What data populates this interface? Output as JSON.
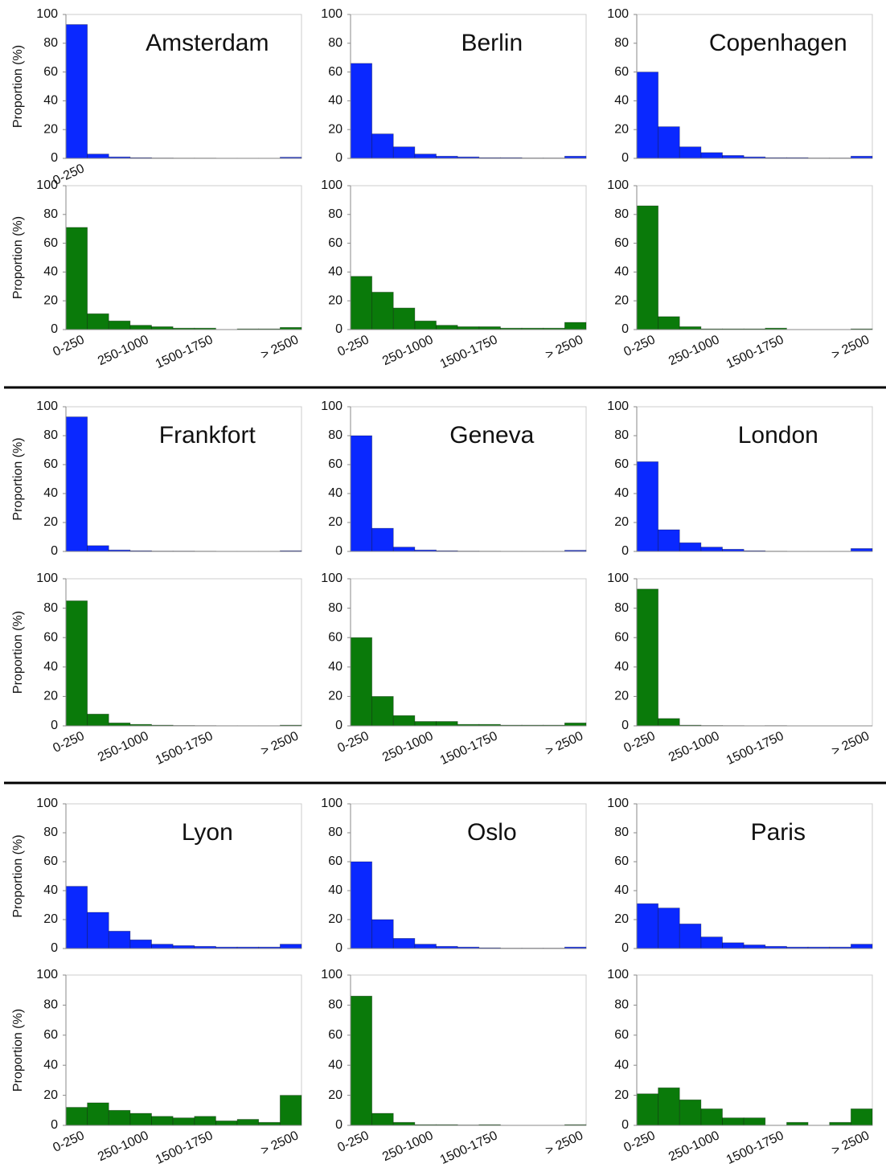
{
  "chart_data": [
    {
      "type": "bar",
      "title": "Amsterdam",
      "ylabel": "Proportion (%)",
      "categories": [
        "0-250",
        null,
        null,
        null,
        null,
        null,
        null,
        null,
        null,
        null,
        null
      ],
      "values": [
        93,
        3,
        1,
        0.5,
        0.3,
        0.2,
        0.2,
        0.1,
        0.1,
        0.1,
        0.8
      ],
      "color": "#0a28ff",
      "ylim": [
        0,
        100
      ],
      "yticks": [
        0,
        20,
        40,
        60,
        80,
        100
      ]
    },
    {
      "type": "bar",
      "ylabel": "Proportion (%)",
      "categories": [
        "0-250",
        null,
        null,
        "250-1000",
        null,
        null,
        "1500-1750",
        null,
        null,
        null,
        "> 2500"
      ],
      "values": [
        71,
        11,
        6,
        3,
        2,
        1,
        1,
        0,
        0.5,
        0.5,
        1.5
      ],
      "color": "#0a7a0a",
      "ylim": [
        0,
        100
      ],
      "yticks": [
        0,
        20,
        40,
        60,
        80,
        100
      ]
    },
    {
      "type": "bar",
      "title": "Berlin",
      "values": [
        66,
        17,
        8,
        3,
        1.5,
        1,
        0.5,
        0.5,
        0.3,
        0.3,
        1.5
      ],
      "color": "#0a28ff",
      "ylim": [
        0,
        100
      ],
      "yticks": [
        0,
        20,
        40,
        60,
        80,
        100
      ]
    },
    {
      "type": "bar",
      "categories": [
        "0-250",
        null,
        null,
        "250-1000",
        null,
        null,
        "1500-1750",
        null,
        null,
        null,
        "> 2500"
      ],
      "values": [
        37,
        26,
        15,
        6,
        3,
        2,
        2,
        1,
        1,
        1,
        5
      ],
      "color": "#0a7a0a",
      "ylim": [
        0,
        100
      ],
      "yticks": [
        0,
        20,
        40,
        60,
        80,
        100
      ]
    },
    {
      "type": "bar",
      "title": "Copenhagen",
      "values": [
        60,
        22,
        8,
        4,
        2,
        1,
        0.5,
        0.5,
        0.3,
        0.3,
        1.5
      ],
      "color": "#0a28ff",
      "ylim": [
        0,
        100
      ],
      "yticks": [
        0,
        20,
        40,
        60,
        80,
        100
      ]
    },
    {
      "type": "bar",
      "categories": [
        "0-250",
        null,
        null,
        "250-1000",
        null,
        null,
        "1500-1750",
        null,
        null,
        null,
        "> 2500"
      ],
      "values": [
        86,
        9,
        2,
        0.5,
        0.5,
        0.5,
        1,
        0,
        0,
        0,
        0.5
      ],
      "color": "#0a7a0a",
      "ylim": [
        0,
        100
      ],
      "yticks": [
        0,
        20,
        40,
        60,
        80,
        100
      ]
    },
    {
      "type": "bar",
      "title": "Frankfort",
      "ylabel": "Proportion (%)",
      "values": [
        93,
        4,
        1,
        0.5,
        0.3,
        0.3,
        0.2,
        0.1,
        0.1,
        0.1,
        0.5
      ],
      "color": "#0a28ff",
      "ylim": [
        0,
        100
      ],
      "yticks": [
        0,
        20,
        40,
        60,
        80,
        100
      ]
    },
    {
      "type": "bar",
      "ylabel": "Proportion (%)",
      "categories": [
        "0-250",
        null,
        null,
        "250-1000",
        null,
        null,
        "1500-1750",
        null,
        null,
        null,
        "> 2500"
      ],
      "values": [
        85,
        8,
        2,
        1,
        0.5,
        0.3,
        0.2,
        0.1,
        0.1,
        0.1,
        0.5
      ],
      "color": "#0a7a0a",
      "ylim": [
        0,
        100
      ],
      "yticks": [
        0,
        20,
        40,
        60,
        80,
        100
      ]
    },
    {
      "type": "bar",
      "title": "Geneva",
      "values": [
        80,
        16,
        3,
        1,
        0.5,
        0.3,
        0.2,
        0.1,
        0.1,
        0.1,
        0.8
      ],
      "color": "#0a28ff",
      "ylim": [
        0,
        100
      ],
      "yticks": [
        0,
        20,
        40,
        60,
        80,
        100
      ]
    },
    {
      "type": "bar",
      "categories": [
        "0-250",
        null,
        null,
        "250-1000",
        null,
        null,
        "1500-1750",
        null,
        null,
        null,
        "> 2500"
      ],
      "values": [
        60,
        20,
        7,
        3,
        3,
        1,
        1,
        0.5,
        0.5,
        0.5,
        2
      ],
      "color": "#0a7a0a",
      "ylim": [
        0,
        100
      ],
      "yticks": [
        0,
        20,
        40,
        60,
        80,
        100
      ]
    },
    {
      "type": "bar",
      "title": "London",
      "values": [
        62,
        15,
        6,
        3,
        1.5,
        0.5,
        0.2,
        0.1,
        0.1,
        0.1,
        2
      ],
      "color": "#0a28ff",
      "ylim": [
        0,
        100
      ],
      "yticks": [
        0,
        20,
        40,
        60,
        80,
        100
      ]
    },
    {
      "type": "bar",
      "categories": [
        "0-250",
        null,
        null,
        "250-1000",
        null,
        null,
        "1500-1750",
        null,
        null,
        null,
        "> 2500"
      ],
      "values": [
        93,
        5,
        0.5,
        0.3,
        0.2,
        0.1,
        0.2,
        0,
        0,
        0,
        0
      ],
      "color": "#0a7a0a",
      "ylim": [
        0,
        100
      ],
      "yticks": [
        0,
        20,
        40,
        60,
        80,
        100
      ]
    },
    {
      "type": "bar",
      "title": "Lyon",
      "ylabel": "Proportion (%)",
      "values": [
        43,
        25,
        12,
        6,
        3,
        2,
        1.5,
        1,
        1,
        1,
        3
      ],
      "color": "#0a28ff",
      "ylim": [
        0,
        100
      ],
      "yticks": [
        0,
        20,
        40,
        60,
        80,
        100
      ]
    },
    {
      "type": "bar",
      "ylabel": "Proportion (%)",
      "categories": [
        "0-250",
        null,
        null,
        "250-1000",
        null,
        null,
        "1500-1750",
        null,
        null,
        null,
        "> 2500"
      ],
      "values": [
        12,
        15,
        10,
        8,
        6,
        5,
        6,
        3,
        4,
        2,
        20
      ],
      "color": "#0a7a0a",
      "ylim": [
        0,
        100
      ],
      "yticks": [
        0,
        20,
        40,
        60,
        80,
        100
      ]
    },
    {
      "type": "bar",
      "title": "Oslo",
      "values": [
        60,
        20,
        7,
        3,
        1.5,
        1,
        0.5,
        0.3,
        0.3,
        0.3,
        1
      ],
      "color": "#0a28ff",
      "ylim": [
        0,
        100
      ],
      "yticks": [
        0,
        20,
        40,
        60,
        80,
        100
      ]
    },
    {
      "type": "bar",
      "categories": [
        "0-250",
        null,
        null,
        "250-1000",
        null,
        null,
        "1500-1750",
        null,
        null,
        null,
        "> 2500"
      ],
      "values": [
        86,
        8,
        2,
        0.5,
        0.5,
        0.3,
        0.5,
        0,
        0,
        0,
        0.5
      ],
      "color": "#0a7a0a",
      "ylim": [
        0,
        100
      ],
      "yticks": [
        0,
        20,
        40,
        60,
        80,
        100
      ]
    },
    {
      "type": "bar",
      "title": "Paris",
      "values": [
        31,
        28,
        17,
        8,
        4,
        2.5,
        1.5,
        1,
        1,
        1,
        3
      ],
      "color": "#0a28ff",
      "ylim": [
        0,
        100
      ],
      "yticks": [
        0,
        20,
        40,
        60,
        80,
        100
      ]
    },
    {
      "type": "bar",
      "categories": [
        "0-250",
        null,
        null,
        "250-1000",
        null,
        null,
        "1500-1750",
        null,
        null,
        null,
        "> 2500"
      ],
      "values": [
        21,
        25,
        17,
        11,
        5,
        5,
        0,
        2,
        0,
        2,
        11
      ],
      "color": "#0a7a0a",
      "ylim": [
        0,
        100
      ],
      "yticks": [
        0,
        20,
        40,
        60,
        80,
        100
      ]
    }
  ]
}
